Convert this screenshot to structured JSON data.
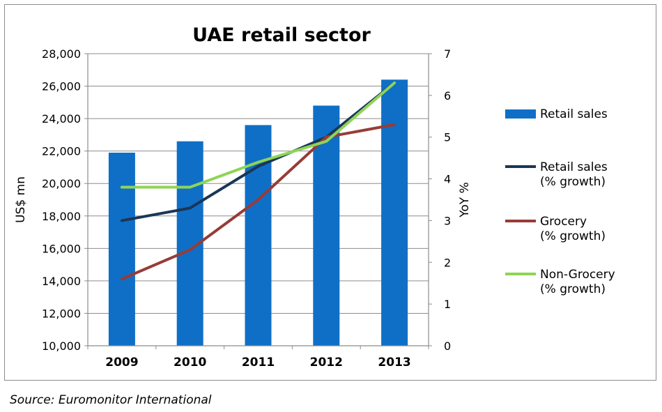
{
  "chart_data": {
    "type": "bar",
    "title": "UAE retail sector",
    "categories": [
      "2009",
      "2010",
      "2011",
      "2012",
      "2013"
    ],
    "ylabel": "US$ mn",
    "y2label": "YoY %",
    "ylim": [
      10000,
      28000
    ],
    "yticks": [
      "10,000",
      "12,000",
      "14,000",
      "16,000",
      "18,000",
      "20,000",
      "22,000",
      "24,000",
      "26,000",
      "28,000"
    ],
    "y2lim": [
      0,
      7
    ],
    "y2ticks": [
      "0",
      "1",
      "2",
      "3",
      "4",
      "5",
      "6",
      "7"
    ],
    "grid": true,
    "legend_position": "right",
    "bars": {
      "name": "Retail sales",
      "color": "#0f6fc6",
      "values": [
        21900,
        22600,
        23600,
        24800,
        26400
      ]
    },
    "lines": [
      {
        "name_line1": "Retail sales",
        "name_line2": "(% growth)",
        "color": "#1b3656",
        "values": [
          3.0,
          3.3,
          4.3,
          5.0,
          6.3
        ]
      },
      {
        "name_line1": "Grocery",
        "name_line2": "(% growth)",
        "color": "#973c37",
        "values": [
          1.6,
          2.3,
          3.5,
          5.0,
          5.3
        ]
      },
      {
        "name_line1": "Non-Grocery",
        "name_line2": "(% growth)",
        "color": "#8ed456",
        "values": [
          3.8,
          3.8,
          4.4,
          4.9,
          6.3
        ]
      }
    ]
  },
  "source": "Source: Euromonitor International"
}
